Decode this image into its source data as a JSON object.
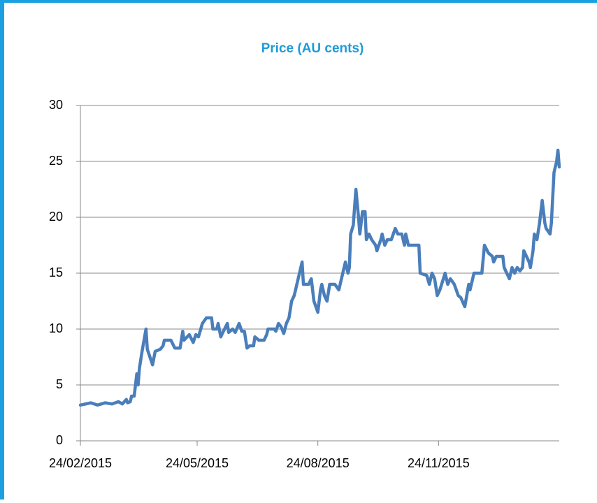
{
  "chart_data": {
    "type": "line",
    "title": "Price (AU cents)",
    "x": [
      "24/02/2015",
      "04/03/2015",
      "09/03/2015",
      "15/03/2015",
      "20/03/2015",
      "25/03/2015",
      "28/03/2015",
      "31/03/2015",
      "01/04/2015",
      "03/04/2015",
      "04/04/2015",
      "06/04/2015",
      "08/04/2015",
      "09/04/2015",
      "10/04/2015",
      "12/04/2015",
      "15/04/2015",
      "16/04/2015",
      "18/04/2015",
      "20/04/2015",
      "22/04/2015",
      "26/04/2015",
      "28/04/2015",
      "29/04/2015",
      "04/05/2015",
      "07/05/2015",
      "11/05/2015",
      "13/05/2015",
      "14/05/2015",
      "18/05/2015",
      "21/05/2015",
      "23/05/2015",
      "25/05/2015",
      "28/05/2015",
      "31/05/2015",
      "04/06/2015",
      "05/06/2015",
      "08/06/2015",
      "09/06/2015",
      "11/06/2015",
      "13/06/2015",
      "16/06/2015",
      "17/06/2015",
      "20/06/2015",
      "22/06/2015",
      "25/06/2015",
      "27/06/2015",
      "29/06/2015",
      "01/07/2015",
      "03/07/2015",
      "06/07/2015",
      "07/07/2015",
      "10/07/2015",
      "14/07/2015",
      "16/07/2015",
      "17/07/2015",
      "22/07/2015",
      "23/07/2015",
      "25/07/2015",
      "27/07/2015",
      "29/07/2015",
      "31/07/2015",
      "02/08/2015",
      "04/08/2015",
      "06/08/2015",
      "08/08/2015",
      "12/08/2015",
      "13/08/2015",
      "17/08/2015",
      "19/08/2015",
      "21/08/2015",
      "24/08/2015",
      "26/08/2015",
      "27/08/2015",
      "29/08/2015",
      "31/08/2015",
      "02/09/2015",
      "06/09/2015",
      "09/09/2015",
      "12/09/2015",
      "14/09/2015",
      "16/09/2015",
      "17/09/2015",
      "18/09/2015",
      "20/09/2015",
      "22/09/2015",
      "24/09/2015",
      "25/09/2015",
      "27/09/2015",
      "29/09/2015",
      "30/09/2015",
      "02/10/2015",
      "04/10/2015",
      "07/10/2015",
      "08/10/2015",
      "11/10/2015",
      "12/10/2015",
      "14/10/2015",
      "16/10/2015",
      "19/10/2015",
      "22/10/2015",
      "24/10/2015",
      "27/10/2015",
      "29/10/2015",
      "30/10/2015",
      "01/11/2015",
      "09/11/2015",
      "10/11/2015",
      "15/11/2015",
      "17/11/2015",
      "19/11/2015",
      "21/11/2015",
      "23/11/2015",
      "25/11/2015",
      "29/11/2015",
      "01/12/2015",
      "03/12/2015",
      "06/12/2015",
      "09/12/2015",
      "11/12/2015",
      "14/12/2015",
      "17/12/2015",
      "18/12/2015",
      "21/12/2015",
      "27/12/2015",
      "29/12/2015",
      "01/01/2016",
      "04/01/2016",
      "05/01/2016",
      "07/01/2016",
      "12/01/2016",
      "13/01/2016",
      "15/01/2016",
      "17/01/2016",
      "19/01/2016",
      "21/01/2016",
      "23/01/2016",
      "25/01/2016",
      "27/01/2016",
      "28/01/2016",
      "30/01/2016",
      "01/02/2016",
      "02/02/2016",
      "04/02/2016",
      "05/02/2016",
      "07/02/2016",
      "09/02/2016",
      "11/02/2016",
      "13/02/2016",
      "14/02/2016",
      "17/02/2016",
      "18/02/2016",
      "20/02/2016",
      "22/02/2016",
      "23/02/2016",
      "24/02/2016"
    ],
    "series": [
      {
        "name": "Price",
        "color": "#4a7ebb",
        "values": [
          3.2,
          3.4,
          3.2,
          3.4,
          3.3,
          3.5,
          3.3,
          3.7,
          3.4,
          3.5,
          4.0,
          4.0,
          6.0,
          5.0,
          6.5,
          8.0,
          10.0,
          8.2,
          7.5,
          6.8,
          8.0,
          8.2,
          8.5,
          9.0,
          9.0,
          8.3,
          8.3,
          9.8,
          9.0,
          9.5,
          8.8,
          9.5,
          9.3,
          10.5,
          11.0,
          11.0,
          10.0,
          10.0,
          10.5,
          9.3,
          9.8,
          10.5,
          9.7,
          10.0,
          9.7,
          10.5,
          9.8,
          9.8,
          8.3,
          8.5,
          8.5,
          9.3,
          9.0,
          9.0,
          9.5,
          10.0,
          10.0,
          9.8,
          10.5,
          10.2,
          9.6,
          10.5,
          11.0,
          12.5,
          13.0,
          14.0,
          16.0,
          14.0,
          14.0,
          14.5,
          12.5,
          11.5,
          13.5,
          14.0,
          13.0,
          12.5,
          14.0,
          14.0,
          13.5,
          15.0,
          16.0,
          15.0,
          15.5,
          18.5,
          19.3,
          22.5,
          20.0,
          18.5,
          20.5,
          20.5,
          18.0,
          18.5,
          18.0,
          17.5,
          17.0,
          18.0,
          18.5,
          17.5,
          18.0,
          18.0,
          19.0,
          18.5,
          18.5,
          17.5,
          18.5,
          17.5,
          17.5,
          15.0,
          14.8,
          14.0,
          15.0,
          14.5,
          13.0,
          13.5,
          15.0,
          14.0,
          14.5,
          14.0,
          13.0,
          12.8,
          12.0,
          14.0,
          13.5,
          15.0,
          15.0,
          17.5,
          16.8,
          16.5,
          16.0,
          16.5,
          16.5,
          15.5,
          15.0,
          14.5,
          15.5,
          15.0,
          15.5,
          15.2,
          15.5,
          17.0,
          16.5,
          16.0,
          15.5,
          17.0,
          18.5,
          18.0,
          19.5,
          21.5,
          19.5,
          19.0,
          18.5,
          19.5,
          24.0,
          25.0,
          26.0,
          24.5
        ]
      }
    ],
    "xlim": [
      "24/02/2015",
      "24/02/2016"
    ],
    "xticks": [
      "24/02/2015",
      "24/05/2015",
      "24/08/2015",
      "24/11/2015"
    ],
    "ylim": [
      0,
      30
    ],
    "yticks": [
      0,
      5,
      10,
      15,
      20,
      25,
      30
    ],
    "grid": true
  }
}
